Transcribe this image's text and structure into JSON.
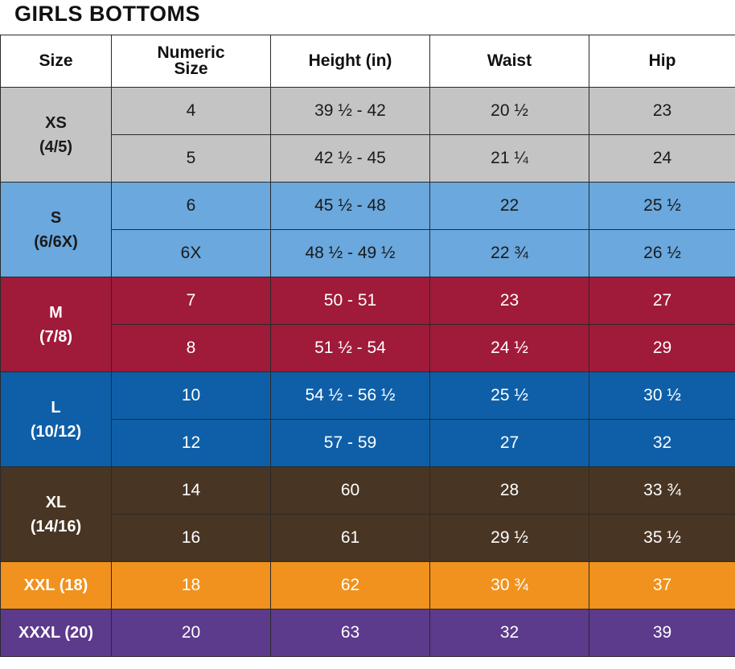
{
  "title": "GIRLS BOTTOMS",
  "headers": {
    "size": "Size",
    "numeric_size_line1": "Numeric",
    "numeric_size_line2": "Size",
    "height": "Height (in)",
    "waist": "Waist",
    "hip": "Hip"
  },
  "groups": [
    {
      "size_line1": "XS",
      "size_line2": "(4/5)",
      "color": "#c4c4c4",
      "rows": [
        {
          "numeric": "4",
          "height": "39 ½ - 42",
          "waist": "20 ½",
          "hip": "23"
        },
        {
          "numeric": "5",
          "height": "42 ½ - 45",
          "waist": "21 ¼",
          "hip": "24"
        }
      ]
    },
    {
      "size_line1": "S",
      "size_line2": "(6/6X)",
      "color": "#6aa8de",
      "rows": [
        {
          "numeric": "6",
          "height": "45 ½ - 48",
          "waist": "22",
          "hip": "25 ½"
        },
        {
          "numeric": "6X",
          "height": "48 ½ - 49 ½",
          "waist": "22 ¾",
          "hip": "26 ½"
        }
      ]
    },
    {
      "size_line1": "M",
      "size_line2": "(7/8)",
      "color": "#a01a3a",
      "rows": [
        {
          "numeric": "7",
          "height": "50 - 51",
          "waist": "23",
          "hip": "27"
        },
        {
          "numeric": "8",
          "height": "51 ½ - 54",
          "waist": "24 ½",
          "hip": "29"
        }
      ]
    },
    {
      "size_line1": "L",
      "size_line2": "(10/12)",
      "color": "#0f5fa8",
      "rows": [
        {
          "numeric": "10",
          "height": "54 ½ - 56 ½",
          "waist": "25 ½",
          "hip": "30 ½"
        },
        {
          "numeric": "12",
          "height": "57 - 59",
          "waist": "27",
          "hip": "32"
        }
      ]
    },
    {
      "size_line1": "XL",
      "size_line2": "(14/16)",
      "color": "#493523",
      "rows": [
        {
          "numeric": "14",
          "height": "60",
          "waist": "28",
          "hip": "33 ¾"
        },
        {
          "numeric": "16",
          "height": "61",
          "waist": "29 ½",
          "hip": "35 ½"
        }
      ]
    },
    {
      "size_line1": "XXL (18)",
      "size_line2": "",
      "color": "#f0921d",
      "rows": [
        {
          "numeric": "18",
          "height": "62",
          "waist": "30 ¾",
          "hip": "37"
        }
      ]
    },
    {
      "size_line1": "XXXL (20)",
      "size_line2": "",
      "color": "#5c3a8c",
      "rows": [
        {
          "numeric": "20",
          "height": "63",
          "waist": "32",
          "hip": "39"
        }
      ]
    }
  ]
}
